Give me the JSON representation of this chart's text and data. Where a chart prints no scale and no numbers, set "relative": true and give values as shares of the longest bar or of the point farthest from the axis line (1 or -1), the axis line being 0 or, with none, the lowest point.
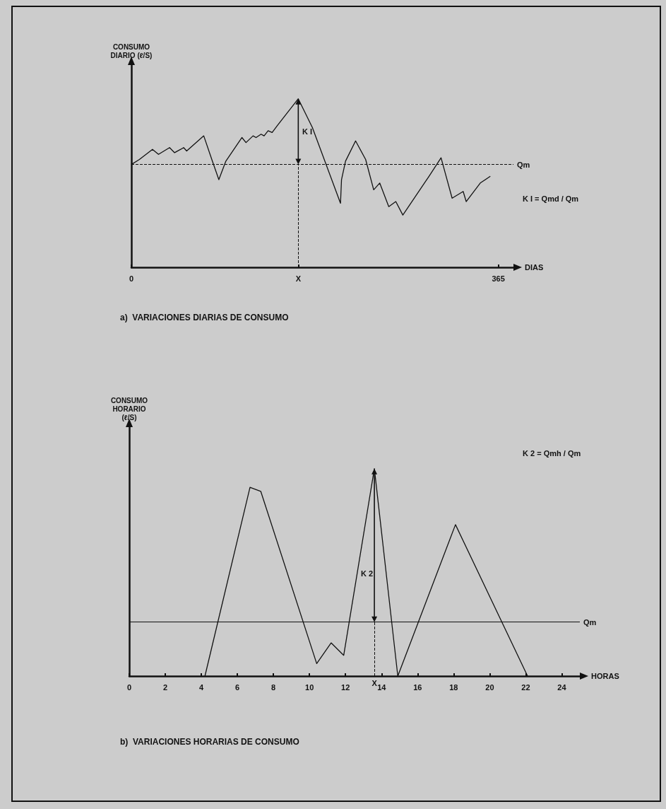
{
  "chart_data": [
    {
      "type": "line",
      "title": "a)  VARIACIONES DIARIAS DE CONSUMO",
      "ylabel": "CONSUMO\nDIARIO (ℓ/S)",
      "xlabel": "DIAS",
      "relative": true,
      "marker": "none",
      "xlim": [
        0,
        380
      ],
      "xticks": [
        0,
        {
          "value": 166,
          "label": "X"
        },
        365
      ],
      "x": [
        0,
        8,
        21,
        27,
        38,
        43,
        52,
        55,
        72,
        80,
        87,
        94,
        110,
        114,
        121,
        124,
        129,
        132,
        136,
        140,
        145,
        166,
        180,
        208,
        209,
        213,
        223,
        233,
        241,
        247,
        256,
        263,
        270,
        296,
        308,
        319,
        330,
        333,
        347,
        357
      ],
      "series": [
        {
          "color": "#111111",
          "values": [
            0.61,
            0.64,
            0.7,
            0.67,
            0.71,
            0.68,
            0.71,
            0.69,
            0.78,
            0.64,
            0.52,
            0.63,
            0.77,
            0.74,
            0.78,
            0.77,
            0.79,
            0.78,
            0.81,
            0.8,
            0.84,
            1,
            0.83,
            0.38,
            0.52,
            0.63,
            0.75,
            0.64,
            0.46,
            0.5,
            0.36,
            0.39,
            0.31,
            0.54,
            0.65,
            0.41,
            0.45,
            0.39,
            0.5,
            0.54
          ]
        }
      ],
      "ref_lines": [
        {
          "axis": "y",
          "value": 0.61,
          "label": "Qm",
          "line_style": "dashed"
        },
        {
          "axis": "x",
          "value": 166,
          "label": null,
          "line_style": "dashed"
        }
      ],
      "annotations": [
        "K I",
        "K I = Qmd / Qm"
      ]
    },
    {
      "type": "line",
      "title": "b)  VARIACIONES HORARIAS DE CONSUMO",
      "ylabel": "CONSUMO\nHORARIO\n(ℓ/S)",
      "xlabel": "HORAS",
      "relative": true,
      "marker": "none",
      "xlim": [
        0,
        25
      ],
      "xticks": [
        0,
        2,
        4,
        6,
        8,
        10,
        12,
        14,
        16,
        18,
        20,
        22,
        24
      ],
      "x": [
        4.2,
        6.7,
        7.3,
        10.4,
        11.2,
        11.9,
        13.6,
        14.9,
        18.1,
        22.1
      ],
      "series": [
        {
          "color": "#111111",
          "values": [
            0,
            0.91,
            0.89,
            0.06,
            0.16,
            0.1,
            1,
            0,
            0.73,
            0
          ]
        }
      ],
      "ref_lines": [
        {
          "axis": "y",
          "value": 0.26,
          "label": "Qm",
          "line_style": "solid"
        },
        {
          "axis": "x",
          "value": 13.6,
          "label": null,
          "line_style": "dashed"
        }
      ],
      "annotations": [
        "K 2",
        {
          "text": "X",
          "x": 13.6,
          "y": 0
        },
        "K 2 = Qmh / Qm"
      ]
    }
  ]
}
